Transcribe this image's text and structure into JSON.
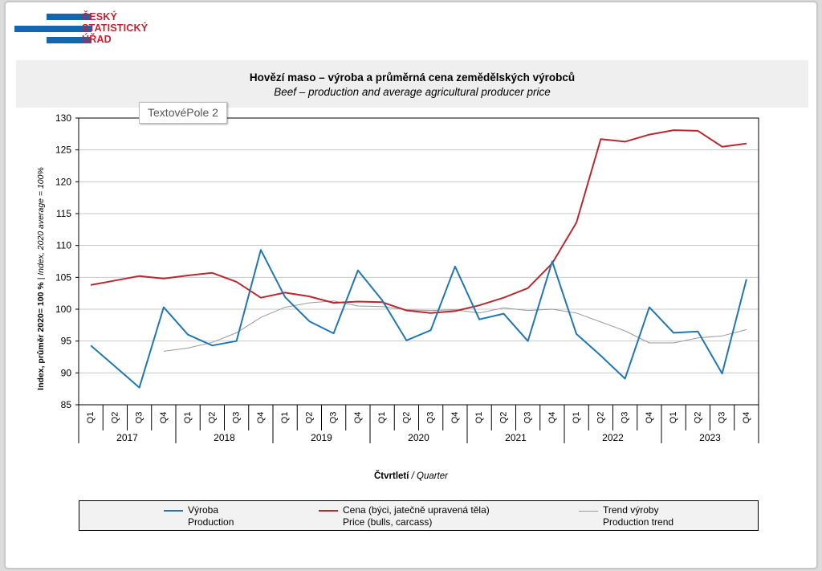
{
  "logo": {
    "lines": [
      "ČESKÝ",
      "STATISTICKÝ",
      "ÚŘAD"
    ],
    "bar_color": "#1566b0",
    "text_color": "#c8202f"
  },
  "textbox_label": "TextovéPole 2",
  "chart_data": {
    "type": "line",
    "title": "Hovězí maso – výroba a průměrná cena zemědělských  výrobců",
    "subtitle": "Beef – production and average  agricultural producer price",
    "ylabel_bold": "Index, průměr 2020= 100 %",
    "ylabel_italic": " | Index, 2020 average = 100%",
    "xlabel_bold": "Čtvrtletí",
    "xlabel_italic": " / Quarter",
    "ylim": [
      85,
      130
    ],
    "yticks": [
      85,
      90,
      95,
      100,
      105,
      110,
      115,
      120,
      125,
      130
    ],
    "grid": true,
    "legend_position": "bottom",
    "quarters": [
      "Q1",
      "Q2",
      "Q3",
      "Q4"
    ],
    "years": [
      "2017",
      "2018",
      "2019",
      "2020",
      "2021",
      "2022",
      "2023"
    ],
    "series": [
      {
        "name": "Výroba",
        "name_en": "Production",
        "color": "#1f77b4",
        "values": [
          94.3,
          91.0,
          87.7,
          100.3,
          96.0,
          94.3,
          95.0,
          109.3,
          101.9,
          98.1,
          96.2,
          106.1,
          101.4,
          95.1,
          96.7,
          106.7,
          98.4,
          99.3,
          95.0,
          107.5,
          96.1,
          92.7,
          89.1,
          100.3,
          96.3,
          96.5,
          89.9,
          104.7
        ]
      },
      {
        "name": "Cena (býci, jatečně upravená těla)",
        "name_en": "Price (bulls, carcass)",
        "color": "#b8292f",
        "values": [
          103.8,
          104.5,
          105.2,
          104.8,
          105.3,
          105.7,
          104.3,
          101.8,
          102.6,
          102.0,
          101.0,
          101.2,
          101.1,
          99.8,
          99.4,
          99.7,
          100.6,
          101.8,
          103.3,
          107.2,
          113.6,
          126.7,
          126.3,
          127.4,
          128.1,
          128.0,
          125.5,
          126.0
        ]
      },
      {
        "name": "Trend výroby",
        "name_en": "Production trend",
        "color": "#999999",
        "values": [
          null,
          null,
          null,
          93.4,
          93.9,
          94.8,
          96.3,
          98.7,
          100.3,
          101.0,
          101.3,
          100.5,
          100.4,
          99.9,
          99.8,
          99.9,
          99.4,
          100.2,
          99.8,
          100.0,
          99.4,
          98.0,
          96.6,
          94.7,
          94.7,
          95.5,
          95.8,
          96.8
        ]
      }
    ]
  }
}
